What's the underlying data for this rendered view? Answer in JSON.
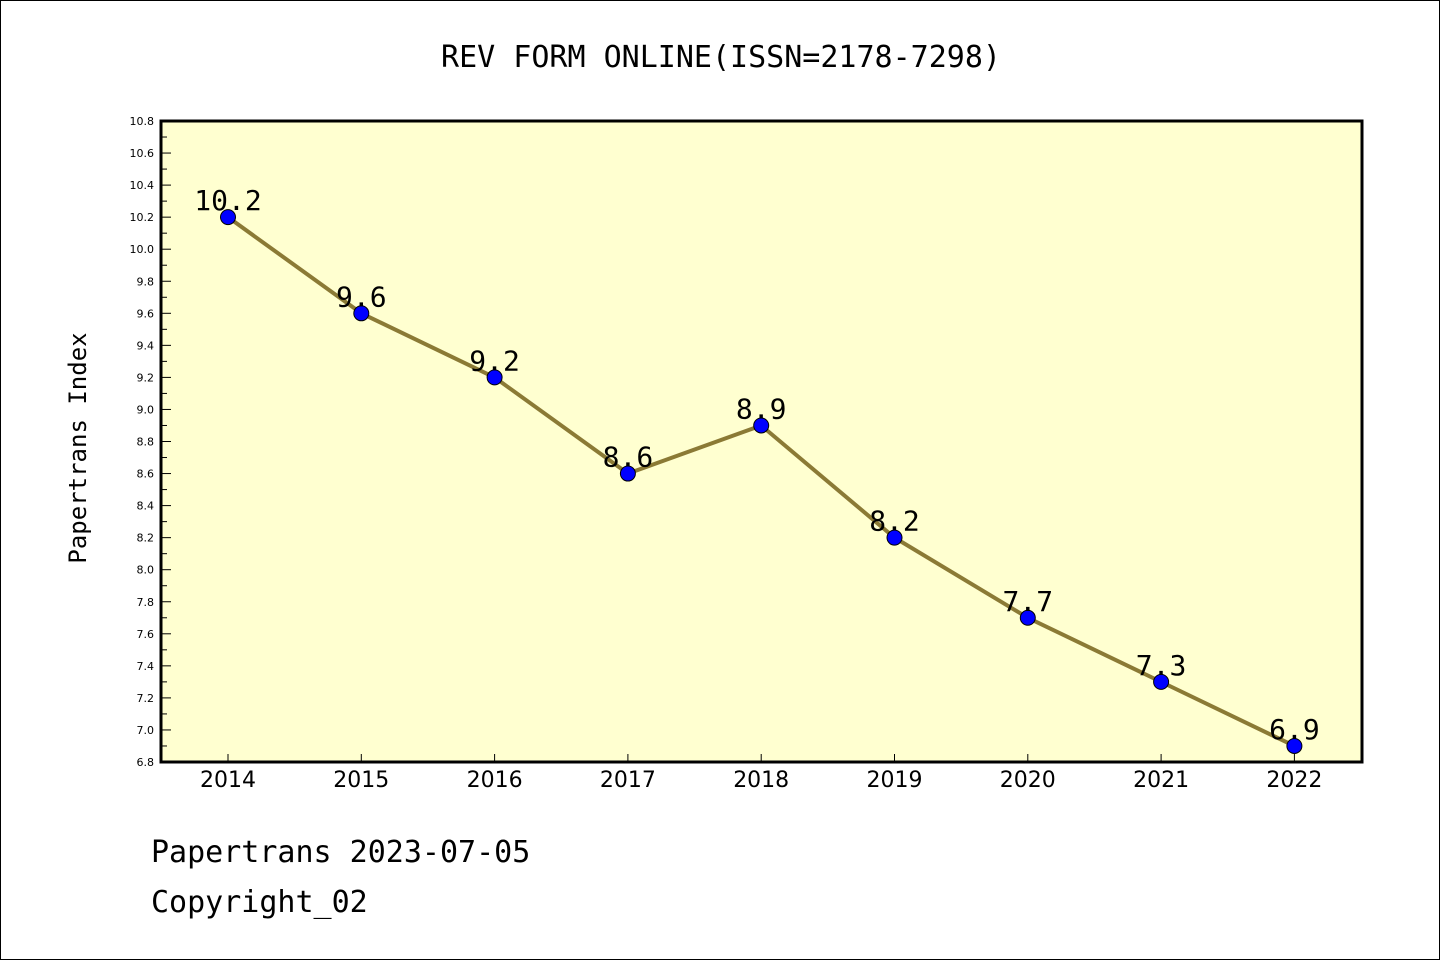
{
  "chart_data": {
    "type": "line",
    "title": "REV FORM ONLINE(ISSN=2178-7298)",
    "xlabel": "",
    "ylabel": "Papertrans Index",
    "categories": [
      "2014",
      "2015",
      "2016",
      "2017",
      "2018",
      "2019",
      "2020",
      "2021",
      "2022"
    ],
    "values": [
      10.2,
      9.6,
      9.2,
      8.6,
      8.9,
      8.2,
      7.7,
      7.3,
      6.9
    ],
    "data_labels": [
      "10.2",
      "9.6",
      "9.2",
      "8.6",
      "8.9",
      "8.2",
      "7.7",
      "7.3",
      "6.9"
    ],
    "ylim": [
      6.8,
      10.8
    ],
    "yticks": [
      "6.8",
      "7.0",
      "7.2",
      "7.4",
      "7.6",
      "7.8",
      "8.0",
      "8.2",
      "8.4",
      "8.6",
      "8.8",
      "9.0",
      "9.2",
      "9.4",
      "9.6",
      "9.8",
      "10.0",
      "10.2",
      "10.4",
      "10.6",
      "10.8"
    ],
    "grid": false,
    "legend": "none",
    "colors": {
      "plot_background": "#ffffd0",
      "line": "#8b7a35",
      "marker": "#0000ff"
    }
  },
  "footer": {
    "line1": "Papertrans 2023-07-05",
    "line2": "Copyright_02"
  }
}
